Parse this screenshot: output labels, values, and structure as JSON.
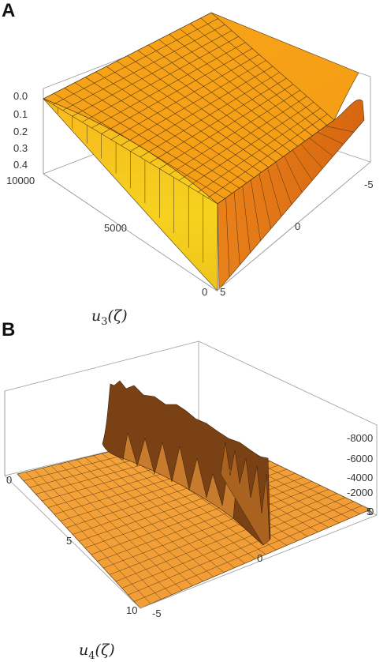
{
  "panels": [
    {
      "letter": "A",
      "caption_main": "u",
      "caption_sub": "3",
      "caption_arg": "(ζ)"
    },
    {
      "letter": "B",
      "caption_main": "u",
      "caption_sub": "4",
      "caption_arg": "(ζ)"
    }
  ],
  "chart_data": [
    {
      "type": "surface3d",
      "panel": "A",
      "title": "",
      "z_ticks": [
        "0.0",
        "0.1",
        "0.2",
        "0.3",
        "0.4"
      ],
      "z_range": [
        0.0,
        0.4
      ],
      "t_ticks": [
        "10000",
        "5000",
        "0"
      ],
      "t_range": [
        0,
        10000
      ],
      "x_ticks": [
        "5",
        "0",
        "-5"
      ],
      "x_range": [
        -5,
        5
      ],
      "colors": {
        "surface_top": "#f5a21a",
        "surface_front": "#f2c21c",
        "surface_side": "#d86b10",
        "grid": "#3a2a10"
      }
    },
    {
      "type": "surface3d",
      "panel": "B",
      "title": "",
      "z_ticks": [
        "-8000",
        "-6000",
        "-4000",
        "-2000",
        "0"
      ],
      "z_range": [
        -9000,
        0
      ],
      "t_ticks": [
        "0",
        "5",
        "10"
      ],
      "t_range": [
        0,
        10
      ],
      "x_ticks": [
        "-5",
        "0",
        "5"
      ],
      "x_range": [
        -5,
        5
      ],
      "colors": {
        "surface": "#f4a23a",
        "spikes_dark": "#6b3a12",
        "spikes_light": "#c97a2a",
        "grid": "#3a2a10"
      }
    }
  ]
}
